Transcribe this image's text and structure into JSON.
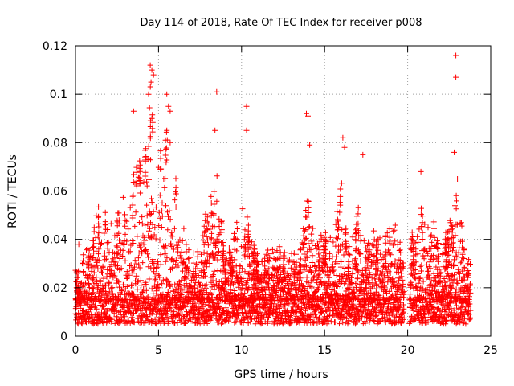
{
  "chart_data": {
    "type": "scatter",
    "title": "Day 114 of 2018, Rate Of TEC Index for receiver p008",
    "xlabel": "GPS time / hours",
    "ylabel": "ROTI / TECUs",
    "xlim": [
      0,
      25
    ],
    "ylim": [
      0,
      0.12
    ],
    "xticks": [
      0,
      5,
      10,
      15,
      20,
      25
    ],
    "yticks": [
      0,
      0.02,
      0.04,
      0.06,
      0.08,
      0.1,
      0.12
    ],
    "xtick_labels": [
      "0",
      "5",
      "10",
      "15",
      "20",
      "25"
    ],
    "ytick_labels": [
      "0",
      "0.02",
      "0.04",
      "0.06",
      "0.08",
      "0.1",
      "0.12"
    ],
    "grid": true,
    "marker": "+",
    "marker_color": "#ff0000",
    "data_gaps_hours": [
      [
        19.8,
        20.1
      ]
    ],
    "data_end_hour": 23.8,
    "typical_baseline": [
      0.005,
      0.015
    ],
    "envelope": {
      "x": [
        0,
        0.5,
        1,
        1.5,
        2,
        2.5,
        3,
        3.5,
        4,
        4.5,
        5,
        5.5,
        6,
        6.5,
        7,
        7.5,
        8,
        8.5,
        9,
        9.5,
        10,
        10.5,
        11,
        11.5,
        12,
        12.5,
        13,
        13.5,
        14,
        14.5,
        15,
        15.5,
        16,
        16.5,
        17,
        17.5,
        18,
        18.5,
        19,
        19.5,
        20.2,
        20.5,
        21,
        21.5,
        22,
        22.5,
        23,
        23.5
      ],
      "y": [
        0.03,
        0.035,
        0.04,
        0.06,
        0.045,
        0.055,
        0.06,
        0.07,
        0.08,
        0.105,
        0.075,
        0.09,
        0.07,
        0.045,
        0.035,
        0.035,
        0.06,
        0.07,
        0.035,
        0.04,
        0.06,
        0.045,
        0.035,
        0.035,
        0.04,
        0.035,
        0.035,
        0.035,
        0.06,
        0.04,
        0.045,
        0.04,
        0.065,
        0.035,
        0.055,
        0.04,
        0.045,
        0.04,
        0.05,
        0.045,
        0.045,
        0.04,
        0.06,
        0.05,
        0.04,
        0.05,
        0.06,
        0.035
      ]
    },
    "notable_points": [
      {
        "x": 0.2,
        "y": 0.038
      },
      {
        "x": 3.5,
        "y": 0.093
      },
      {
        "x": 4.5,
        "y": 0.112
      },
      {
        "x": 4.6,
        "y": 0.11
      },
      {
        "x": 4.7,
        "y": 0.108
      },
      {
        "x": 4.55,
        "y": 0.105
      },
      {
        "x": 4.4,
        "y": 0.1
      },
      {
        "x": 4.6,
        "y": 0.09
      },
      {
        "x": 5.5,
        "y": 0.1
      },
      {
        "x": 5.6,
        "y": 0.095
      },
      {
        "x": 5.7,
        "y": 0.093
      },
      {
        "x": 5.5,
        "y": 0.085
      },
      {
        "x": 5.7,
        "y": 0.08
      },
      {
        "x": 8.5,
        "y": 0.101
      },
      {
        "x": 8.4,
        "y": 0.085
      },
      {
        "x": 10.3,
        "y": 0.095
      },
      {
        "x": 10.3,
        "y": 0.085
      },
      {
        "x": 13.9,
        "y": 0.092
      },
      {
        "x": 14.0,
        "y": 0.091
      },
      {
        "x": 14.1,
        "y": 0.079
      },
      {
        "x": 16.1,
        "y": 0.082
      },
      {
        "x": 16.2,
        "y": 0.078
      },
      {
        "x": 17.3,
        "y": 0.075
      },
      {
        "x": 20.8,
        "y": 0.068
      },
      {
        "x": 22.9,
        "y": 0.116
      },
      {
        "x": 22.9,
        "y": 0.107
      },
      {
        "x": 22.8,
        "y": 0.076
      },
      {
        "x": 23.0,
        "y": 0.065
      }
    ]
  }
}
